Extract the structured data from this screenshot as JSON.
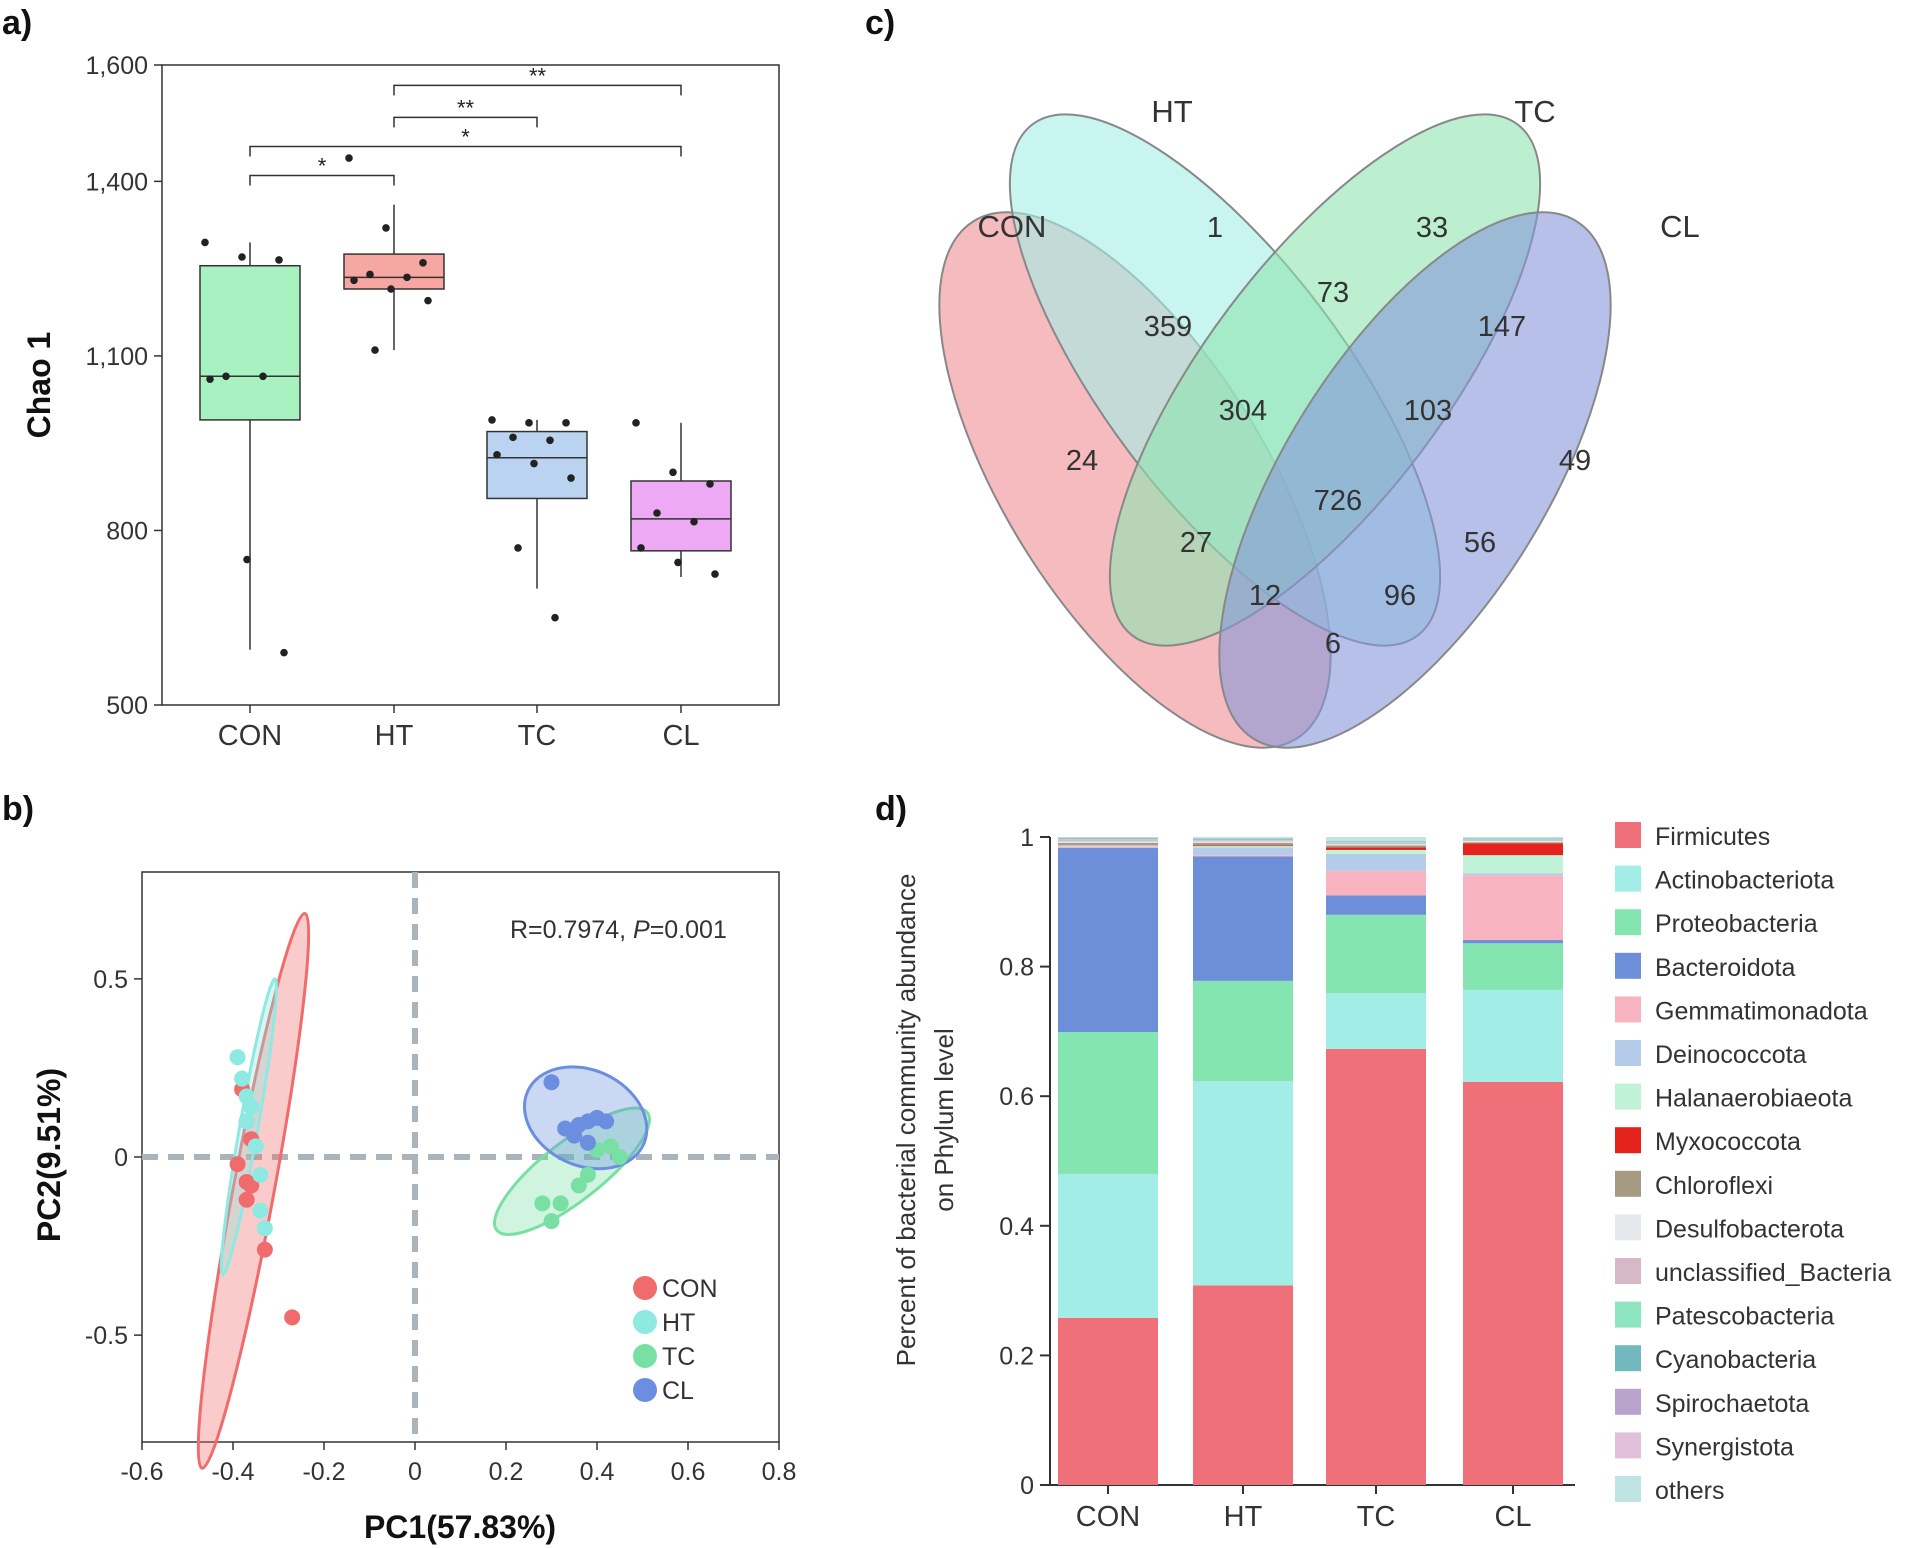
{
  "panel_labels": {
    "a": "a)",
    "b": "b)",
    "c": "c)",
    "d": "d)"
  },
  "chart_data": [
    {
      "panel": "a",
      "type": "box",
      "ylabel": "Chao 1",
      "ytick_labels": [
        "1,600",
        "1,400",
        "1,100",
        "800",
        "500"
      ],
      "ytick_values": [
        1600,
        1400,
        1100,
        800,
        500
      ],
      "ylim": [
        500,
        1600
      ],
      "categories": [
        "CON",
        "HT",
        "TC",
        "CL"
      ],
      "colors": [
        "#a8f2c2",
        "#f7a7a1",
        "#b9d3f1",
        "#eea9f5"
      ],
      "boxes": [
        {
          "min": 595,
          "q1": 990,
          "median": 1065,
          "q3": 1255,
          "max": 1295
        },
        {
          "min": 1110,
          "q1": 1215,
          "median": 1235,
          "q3": 1275,
          "max": 1360
        },
        {
          "min": 700,
          "q1": 855,
          "median": 925,
          "q3": 970,
          "max": 990
        },
        {
          "min": 720,
          "q1": 765,
          "median": 820,
          "q3": 885,
          "max": 985
        }
      ],
      "points": [
        [
          1295,
          1270,
          1265,
          1065,
          1065,
          1060,
          750,
          590
        ],
        [
          1440,
          1320,
          1260,
          1240,
          1235,
          1230,
          1215,
          1195,
          1110
        ],
        [
          990,
          985,
          985,
          960,
          955,
          930,
          915,
          890,
          770,
          650
        ],
        [
          985,
          900,
          880,
          830,
          815,
          770,
          745,
          725
        ]
      ],
      "significance": [
        {
          "from": "CON",
          "to": "HT",
          "label": "*",
          "y": 1410
        },
        {
          "from": "CON",
          "to": "CL",
          "label": "*",
          "y": 1460
        },
        {
          "from": "HT",
          "to": "TC",
          "label": "**",
          "y": 1510
        },
        {
          "from": "HT",
          "to": "CL",
          "label": "**",
          "y": 1565
        }
      ]
    },
    {
      "panel": "b",
      "type": "scatter",
      "xlabel": "PC1(57.83%)",
      "ylabel": "PC2(9.51%)",
      "xlim": [
        -0.6,
        0.8
      ],
      "ylim": [
        -0.8,
        0.8
      ],
      "xtick_labels": [
        "-0.6",
        "-0.4",
        "-0.2",
        "0",
        "0.2",
        "0.4",
        "0.6",
        "0.8"
      ],
      "xtick_values": [
        -0.6,
        -0.4,
        -0.2,
        0,
        0.2,
        0.4,
        0.6,
        0.8
      ],
      "ytick_labels": [
        "0.5",
        "0",
        "-0.5"
      ],
      "ytick_values": [
        0.5,
        0,
        -0.5
      ],
      "annotation_prefix": "R=0.7974, ",
      "annotation_p": "P",
      "annotation_suffix": "=0.001",
      "series": [
        {
          "name": "CON",
          "color": "#f06b6b",
          "points": [
            [
              -0.38,
              0.19
            ],
            [
              -0.37,
              0.1
            ],
            [
              -0.36,
              0.05
            ],
            [
              -0.39,
              -0.02
            ],
            [
              -0.37,
              -0.07
            ],
            [
              -0.36,
              -0.08
            ],
            [
              -0.37,
              -0.12
            ],
            [
              -0.33,
              -0.26
            ],
            [
              -0.27,
              -0.45
            ]
          ],
          "ellipse": {
            "cx": -0.355,
            "cy": -0.095,
            "rx": 0.62,
            "ry": 0.045,
            "angle_deg": 79.5
          }
        },
        {
          "name": "HT",
          "color": "#8de9e2",
          "points": [
            [
              -0.39,
              0.28
            ],
            [
              -0.38,
              0.22
            ],
            [
              -0.37,
              0.17
            ],
            [
              -0.36,
              0.14
            ],
            [
              -0.37,
              0.1
            ],
            [
              -0.35,
              0.03
            ],
            [
              -0.34,
              -0.05
            ],
            [
              -0.34,
              -0.15
            ],
            [
              -0.33,
              -0.2
            ]
          ],
          "ellipse": {
            "cx": -0.365,
            "cy": 0.085,
            "rx": 0.33,
            "ry": 0.02,
            "angle_deg": 80
          }
        },
        {
          "name": "TC",
          "color": "#79e0a4",
          "points": [
            [
              0.28,
              -0.13
            ],
            [
              0.32,
              -0.13
            ],
            [
              0.3,
              -0.18
            ],
            [
              0.36,
              -0.08
            ],
            [
              0.38,
              -0.05
            ],
            [
              0.4,
              0.02
            ],
            [
              0.43,
              0.03
            ],
            [
              0.45,
              0.0
            ]
          ],
          "ellipse": {
            "cx": 0.345,
            "cy": -0.04,
            "rx": 0.21,
            "ry": 0.065,
            "angle_deg": 38
          }
        },
        {
          "name": "CL",
          "color": "#6b8ee0",
          "points": [
            [
              0.3,
              0.21
            ],
            [
              0.33,
              0.08
            ],
            [
              0.35,
              0.06
            ],
            [
              0.38,
              0.1
            ],
            [
              0.4,
              0.11
            ],
            [
              0.42,
              0.1
            ],
            [
              0.38,
              0.04
            ],
            [
              0.36,
              0.09
            ]
          ],
          "ellipse": {
            "cx": 0.375,
            "cy": 0.11,
            "rx": 0.14,
            "ry": 0.105,
            "angle_deg": -25
          }
        }
      ]
    },
    {
      "panel": "c",
      "type": "venn",
      "sets": [
        "CON",
        "HT",
        "TC",
        "CL"
      ],
      "colors": [
        "#f08e95",
        "#a3eee6",
        "#8ee4b0",
        "#8696d8"
      ],
      "regions": [
        {
          "sets": [
            "HT"
          ],
          "value": "1"
        },
        {
          "sets": [
            "TC"
          ],
          "value": "33"
        },
        {
          "sets": [
            "HT",
            "TC"
          ],
          "value": "73"
        },
        {
          "sets": [
            "CON",
            "HT"
          ],
          "value": "359"
        },
        {
          "sets": [
            "TC",
            "CL"
          ],
          "value": "147"
        },
        {
          "sets": [
            "CON",
            "HT",
            "TC"
          ],
          "value": "304"
        },
        {
          "sets": [
            "HT",
            "TC",
            "CL"
          ],
          "value": "103"
        },
        {
          "sets": [
            "CON"
          ],
          "value": "24"
        },
        {
          "sets": [
            "CL"
          ],
          "value": "49"
        },
        {
          "sets": [
            "CON",
            "HT",
            "TC",
            "CL"
          ],
          "value": "726"
        },
        {
          "sets": [
            "CON",
            "TC"
          ],
          "value": "27"
        },
        {
          "sets": [
            "HT",
            "CL"
          ],
          "value": "56"
        },
        {
          "sets": [
            "CON",
            "TC",
            "CL"
          ],
          "value": "12"
        },
        {
          "sets": [
            "CON",
            "HT",
            "CL"
          ],
          "value": "96"
        },
        {
          "sets": [
            "CON",
            "CL"
          ],
          "value": "6"
        }
      ]
    },
    {
      "panel": "d",
      "type": "stacked_bar",
      "ylabel_line1": "Percent of bacterial community abundance",
      "ylabel_line2": "on Phylum level",
      "ylim": [
        0,
        1
      ],
      "ytick_labels": [
        "1",
        "0.8",
        "0.6",
        "0.4",
        "0.2",
        "0"
      ],
      "ytick_values": [
        1,
        0.8,
        0.6,
        0.4,
        0.2,
        0
      ],
      "categories": [
        "CON",
        "HT",
        "TC",
        "CL"
      ],
      "series": [
        {
          "name": "Firmicutes",
          "color": "#f0707a",
          "values": [
            0.258,
            0.308,
            0.673,
            0.622
          ]
        },
        {
          "name": "Actinobacteriota",
          "color": "#a2ede6",
          "values": [
            0.222,
            0.315,
            0.086,
            0.142
          ]
        },
        {
          "name": "Proteobacteria",
          "color": "#84e5b1",
          "values": [
            0.219,
            0.155,
            0.121,
            0.072
          ]
        },
        {
          "name": "Bacteroidota",
          "color": "#6d8fd9",
          "values": [
            0.284,
            0.192,
            0.03,
            0.005
          ]
        },
        {
          "name": "Gemmatimonadota",
          "color": "#f7b3bf",
          "values": [
            0.002,
            0.002,
            0.038,
            0.1
          ]
        },
        {
          "name": "Deinococcota",
          "color": "#b4cbe9",
          "values": [
            0.001,
            0.012,
            0.026,
            0.003
          ]
        },
        {
          "name": "Halanaerobiaeota",
          "color": "#bff2d6",
          "values": [
            0.001,
            0.002,
            0.006,
            0.028
          ]
        },
        {
          "name": "Myxococcota",
          "color": "#e5231c",
          "values": [
            0.0,
            0.001,
            0.004,
            0.018
          ]
        },
        {
          "name": "Chloroflexi",
          "color": "#a79a82",
          "values": [
            0.004,
            0.004,
            0.003,
            0.002
          ]
        },
        {
          "name": "Desulfobacterota",
          "color": "#e6e9ec",
          "values": [
            0.002,
            0.002,
            0.002,
            0.002
          ]
        },
        {
          "name": "unclassified_Bacteria",
          "color": "#d6b8c6",
          "values": [
            0.003,
            0.002,
            0.002,
            0.002
          ]
        },
        {
          "name": "Patescobacteria",
          "color": "#8de6c0",
          "values": [
            0.001,
            0.001,
            0.001,
            0.001
          ]
        },
        {
          "name": "Cyanobacteria",
          "color": "#71b9bd",
          "values": [
            0.001,
            0.001,
            0.001,
            0.001
          ]
        },
        {
          "name": "Spirochaetota",
          "color": "#b7a3cc",
          "values": [
            0.001,
            0.001,
            0.0,
            0.0
          ]
        },
        {
          "name": "Synergistota",
          "color": "#e2c0dc",
          "values": [
            0.0,
            0.0,
            0.0,
            0.0
          ]
        },
        {
          "name": "others",
          "color": "#bfe4e4",
          "values": [
            0.001,
            0.002,
            0.007,
            0.002
          ]
        }
      ]
    }
  ]
}
